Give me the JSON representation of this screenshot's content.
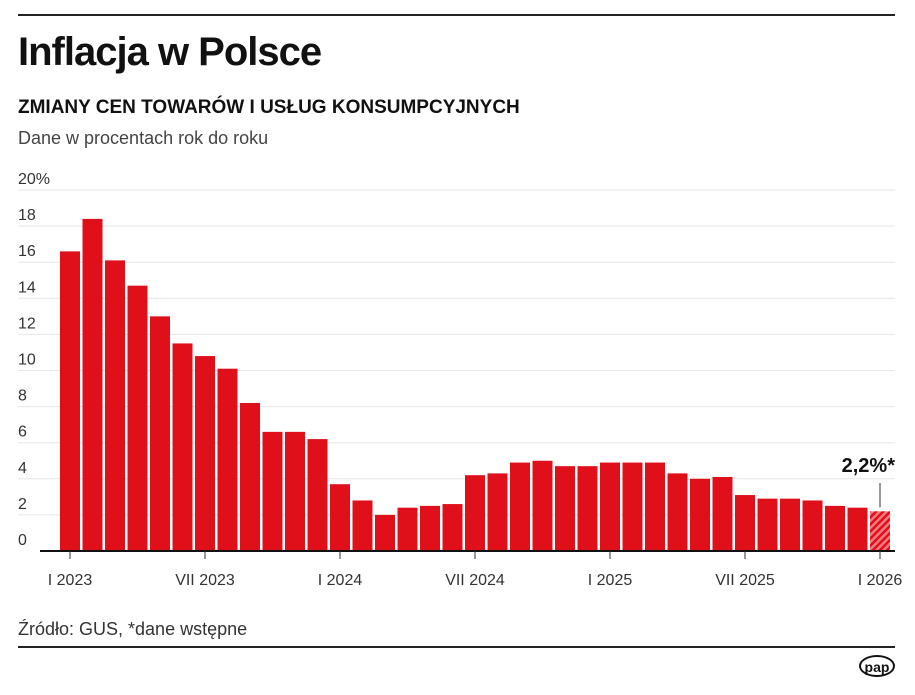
{
  "title": "Inflacja w Polsce",
  "subtitle": "ZMIANY CEN TOWARÓW I USŁUG KONSUMPCYJNYCH",
  "note": "Dane w procentach rok do roku",
  "source": "Źródło: GUS, *dane wstępne",
  "logo": "pap",
  "chart_data": {
    "type": "bar",
    "title": "Inflacja w Polsce",
    "ylim": [
      0,
      20
    ],
    "yticks": [
      {
        "v": 0,
        "label": "0"
      },
      {
        "v": 2,
        "label": "2"
      },
      {
        "v": 4,
        "label": "4"
      },
      {
        "v": 6,
        "label": "6"
      },
      {
        "v": 8,
        "label": "8"
      },
      {
        "v": 10,
        "label": "10"
      },
      {
        "v": 12,
        "label": "12"
      },
      {
        "v": 14,
        "label": "14"
      },
      {
        "v": 16,
        "label": "16"
      },
      {
        "v": 18,
        "label": "18"
      },
      {
        "v": 20,
        "label": "20%"
      }
    ],
    "xticks": [
      {
        "i": 0,
        "label": "I 2023"
      },
      {
        "i": 6,
        "label": "VII 2023"
      },
      {
        "i": 12,
        "label": "I 2024"
      },
      {
        "i": 18,
        "label": "VII 2024"
      },
      {
        "i": 24,
        "label": "I 2025"
      },
      {
        "i": 30,
        "label": "VII 2025"
      },
      {
        "i": 36,
        "label": "I 2026"
      }
    ],
    "grid": true,
    "color": "#e0101b",
    "values": [
      16.6,
      18.4,
      16.1,
      14.7,
      13.0,
      11.5,
      10.8,
      10.1,
      8.2,
      6.6,
      6.6,
      6.2,
      3.7,
      2.8,
      2.0,
      2.4,
      2.5,
      2.6,
      4.2,
      4.3,
      4.9,
      5.0,
      4.7,
      4.7,
      4.9,
      4.9,
      4.9,
      4.3,
      4.0,
      4.1,
      3.1,
      2.9,
      2.9,
      2.8,
      2.5,
      2.4,
      2.2
    ],
    "preliminary_last": true,
    "annotation": "2,2%*"
  }
}
